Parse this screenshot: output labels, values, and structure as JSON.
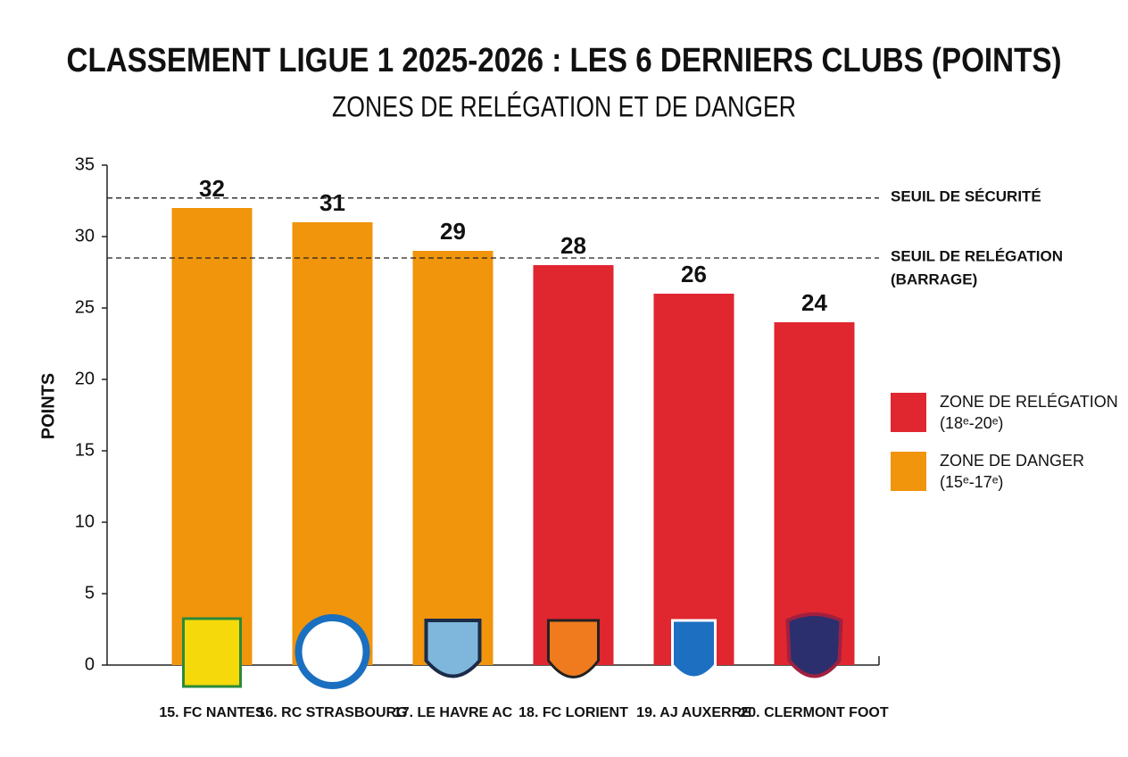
{
  "chart_data": {
    "type": "bar",
    "title": "CLASSEMENT LIGUE 1 2025-2026 : LES 6 DERNIERS CLUBS (POINTS)",
    "subtitle": "ZONES DE RELÉGATION ET DE DANGER",
    "y_label": "POINTS",
    "categories": [
      "15. FC NANTES",
      "16. RC STRASBOURG",
      "17. LE HAVRE AC",
      "18. FC LORIENT",
      "19. AJ AUXERRE",
      "20. CLERMONT FOOT"
    ],
    "values": [
      32,
      31,
      29,
      28,
      26,
      24
    ],
    "colors": [
      "#f0950c",
      "#f0950c",
      "#f0950c",
      "#e0262f",
      "#e0262f",
      "#e0262f"
    ],
    "ylim": [
      0,
      35
    ],
    "yticks": [
      0,
      5,
      10,
      15,
      20,
      25,
      30,
      35
    ],
    "reference_lines": [
      {
        "value": 32.7,
        "label": [
          "SEUIL DE SÉCURITÉ"
        ]
      },
      {
        "value": 28.5,
        "label": [
          "SEUIL DE RELÉGATION",
          "(BARRAGE)"
        ]
      }
    ],
    "legend": [
      {
        "name": "ZONE DE RELÉGATION",
        "note": "(18ᵉ-20ᵉ)",
        "color": "#e0262f"
      },
      {
        "name": "ZONE DE DANGER",
        "note": "(15ᵉ-17ᵉ)",
        "color": "#f0950c"
      }
    ]
  }
}
